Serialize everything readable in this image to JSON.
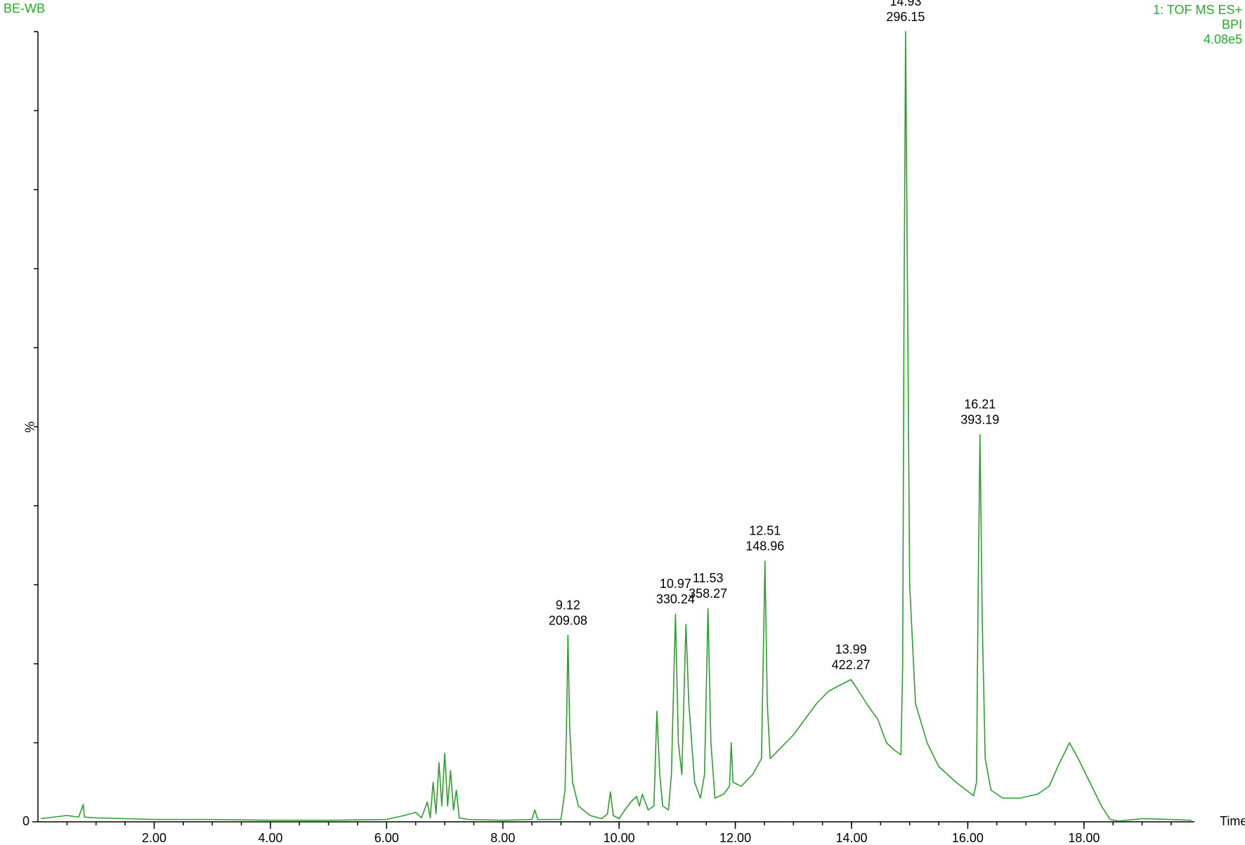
{
  "chart_data": {
    "type": "line",
    "title": "BE-WB",
    "header_right": [
      "1: TOF MS ES+",
      "BPI",
      "4.08e5"
    ],
    "x_label": "Time",
    "y_label": "%",
    "xlim": [
      0,
      19.9
    ],
    "ylim": [
      0,
      100
    ],
    "xticks": [
      {
        "value": 2,
        "label": "2.00"
      },
      {
        "value": 4,
        "label": "4.00"
      },
      {
        "value": 6,
        "label": "6.00"
      },
      {
        "value": 8,
        "label": "8.00"
      },
      {
        "value": 10,
        "label": "10.00"
      },
      {
        "value": 12,
        "label": "12.00"
      },
      {
        "value": 14,
        "label": "14.00"
      },
      {
        "value": 16,
        "label": "16.00"
      },
      {
        "value": 18,
        "label": "18.00"
      }
    ],
    "yticks": [
      0
    ],
    "x": [
      0.05,
      0.5,
      0.7,
      0.78,
      0.8,
      1.0,
      1.5,
      2.0,
      3.0,
      4.0,
      5.0,
      6.0,
      6.3,
      6.5,
      6.6,
      6.7,
      6.75,
      6.8,
      6.85,
      6.9,
      6.95,
      7.0,
      7.05,
      7.1,
      7.15,
      7.2,
      7.25,
      7.4,
      8.0,
      8.5,
      8.55,
      8.6,
      9.0,
      9.07,
      9.1,
      9.12,
      9.15,
      9.2,
      9.3,
      9.5,
      9.7,
      9.8,
      9.85,
      9.9,
      10.0,
      10.1,
      10.2,
      10.3,
      10.35,
      10.4,
      10.5,
      10.6,
      10.65,
      10.7,
      10.75,
      10.85,
      10.9,
      10.97,
      11.02,
      11.08,
      11.15,
      11.2,
      11.3,
      11.4,
      11.47,
      11.53,
      11.58,
      11.65,
      11.8,
      11.9,
      11.93,
      11.96,
      12.1,
      12.3,
      12.45,
      12.51,
      12.55,
      12.6,
      12.8,
      13.0,
      13.2,
      13.4,
      13.6,
      13.8,
      13.99,
      14.1,
      14.3,
      14.45,
      14.6,
      14.75,
      14.85,
      14.88,
      14.9,
      14.93,
      14.96,
      15.0,
      15.1,
      15.3,
      15.5,
      15.8,
      16.1,
      16.15,
      16.18,
      16.21,
      16.25,
      16.3,
      16.4,
      16.6,
      16.9,
      17.2,
      17.4,
      17.55,
      17.75,
      17.9,
      18.1,
      18.3,
      18.45,
      18.6,
      19.0,
      19.5,
      19.85
    ],
    "series": [
      {
        "name": "BPI",
        "color": "#2ca02c",
        "values": [
          0.4,
          0.8,
          0.6,
          2.2,
          0.6,
          0.5,
          0.4,
          0.3,
          0.3,
          0.2,
          0.2,
          0.3,
          0.8,
          1.2,
          0.5,
          2.5,
          0.5,
          5,
          1,
          7.5,
          2,
          8.7,
          2,
          6.5,
          1.5,
          4,
          0.5,
          0.3,
          0.2,
          0.3,
          1.5,
          0.3,
          0.3,
          4,
          14,
          23.6,
          12,
          5,
          2,
          0.8,
          0.4,
          1,
          3.8,
          0.8,
          0.4,
          1.5,
          2.5,
          3.2,
          2,
          3.5,
          1.5,
          2,
          14,
          6,
          2,
          1.5,
          6,
          26.3,
          10,
          6,
          25,
          15,
          5,
          3,
          6,
          27,
          10,
          3,
          3.5,
          4.5,
          10,
          5,
          4.5,
          6,
          8,
          33,
          15,
          8,
          9.5,
          11,
          13,
          15,
          16.5,
          17.3,
          18,
          16.8,
          14.5,
          13,
          10,
          9,
          8.5,
          20,
          60,
          100,
          70,
          30,
          15,
          10,
          7,
          5,
          3.3,
          5,
          30,
          49,
          25,
          8,
          4,
          3,
          3,
          3.5,
          4.5,
          7,
          10,
          8,
          5,
          2,
          0.3,
          0.1,
          0.4,
          0.3,
          0.2
        ]
      }
    ],
    "annotations": [
      {
        "x": 9.12,
        "mz": 209.08,
        "y": 23.6
      },
      {
        "x": 10.97,
        "mz": 330.24,
        "y": 26.3
      },
      {
        "x": 11.53,
        "mz": 358.27,
        "y": 27
      },
      {
        "x": 12.51,
        "mz": 148.96,
        "y": 33
      },
      {
        "x": 13.99,
        "mz": 422.27,
        "y": 18
      },
      {
        "x": 14.93,
        "mz": 296.15,
        "y": 100
      },
      {
        "x": 16.21,
        "mz": 393.19,
        "y": 49
      }
    ]
  }
}
